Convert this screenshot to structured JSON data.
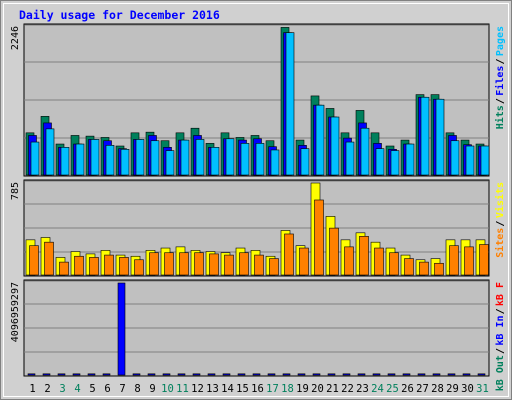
{
  "chart_data": {
    "type": "bar",
    "title": "Daily usage for December 2016",
    "categories": [
      "1",
      "2",
      "3",
      "4",
      "5",
      "6",
      "7",
      "8",
      "9",
      "10",
      "11",
      "12",
      "13",
      "14",
      "15",
      "16",
      "17",
      "18",
      "19",
      "20",
      "21",
      "22",
      "23",
      "24",
      "25",
      "26",
      "27",
      "28",
      "29",
      "30",
      "31"
    ],
    "weekend_days": [
      "3",
      "4",
      "10",
      "11",
      "17",
      "18",
      "24",
      "25",
      "31"
    ],
    "panels": [
      {
        "name": "hits-files-pages",
        "max_label": "2246",
        "ymax": 2246,
        "legend": [
          {
            "label": "Pages",
            "color": "#00c0ff"
          },
          {
            "label": "/",
            "color": "#000000"
          },
          {
            "label": "Files",
            "color": "#0000ff"
          },
          {
            "label": "/",
            "color": "#000000"
          },
          {
            "label": "Hits",
            "color": "#00805c"
          }
        ],
        "series": [
          {
            "name": "Hits",
            "color": "#00805c",
            "values": [
              640,
              890,
              470,
              600,
              590,
              570,
              440,
              640,
              650,
              520,
              640,
              710,
              480,
              640,
              570,
              600,
              520,
              2240,
              530,
              1200,
              1010,
              640,
              980,
              640,
              440,
              530,
              1220,
              1220,
              640,
              530,
              470
            ]
          },
          {
            "name": "Files",
            "color": "#0000ff",
            "values": [
              600,
              790,
              420,
              470,
              540,
              520,
              400,
              540,
              600,
              420,
              530,
              600,
              420,
              550,
              530,
              550,
              430,
              2160,
              450,
              1060,
              880,
              560,
              790,
              480,
              390,
              470,
              1180,
              1150,
              600,
              460,
              440
            ]
          },
          {
            "name": "Pages",
            "color": "#00c0ff",
            "values": [
              500,
              700,
              420,
              470,
              540,
              450,
              390,
              540,
              520,
              370,
              530,
              540,
              420,
              550,
              480,
              480,
              380,
              2160,
              400,
              1060,
              880,
              500,
              710,
              400,
              370,
              470,
              1180,
              1150,
              520,
              440,
              440
            ]
          }
        ]
      },
      {
        "name": "visits-sites",
        "max_label": "785",
        "ymax": 785,
        "legend": [
          {
            "label": "Visits",
            "color": "#ffff00"
          },
          {
            "label": "/",
            "color": "#000000"
          },
          {
            "label": "Sites",
            "color": "#ff8000"
          }
        ],
        "series": [
          {
            "name": "Visits",
            "color": "#ffff00",
            "values": [
              300,
              320,
              150,
              200,
              180,
              210,
              170,
              160,
              210,
              230,
              240,
              210,
              200,
              190,
              230,
              210,
              160,
              380,
              250,
              785,
              500,
              300,
              360,
              280,
              230,
              170,
              130,
              140,
              300,
              300,
              300
            ]
          },
          {
            "name": "Sites",
            "color": "#ff8000",
            "values": [
              250,
              280,
              110,
              160,
              150,
              170,
              150,
              130,
              190,
              190,
              190,
              190,
              180,
              170,
              190,
              170,
              140,
              350,
              230,
              640,
              400,
              240,
              330,
              230,
              190,
              140,
              110,
              100,
              250,
              240,
              260
            ]
          }
        ]
      },
      {
        "name": "kbytes",
        "max_label": "4096959297",
        "ymax": 4096959297,
        "legend": [
          {
            "label": "Visits",
            "color": "#ffff00"
          },
          {
            "label": "kB F",
            "color": "#ff0000"
          },
          {
            "label": "/",
            "color": "#000000"
          },
          {
            "label": "kB In",
            "color": "#0000ff"
          },
          {
            "label": "/",
            "color": "#000000"
          },
          {
            "label": "kB Out",
            "color": "#00805c"
          }
        ],
        "series": [
          {
            "name": "kB In",
            "color": "#0000ff",
            "values": [
              0,
              0,
              0,
              0,
              0,
              0,
              4096959297,
              0,
              0,
              0,
              0,
              0,
              0,
              0,
              0,
              0,
              0,
              0,
              0,
              0,
              0,
              0,
              0,
              0,
              0,
              0,
              0,
              0,
              0,
              0,
              0
            ]
          }
        ]
      }
    ]
  },
  "colors": {
    "plot_background": "#c0c0c0",
    "frame_background": "#d0d0d0",
    "title": "#0000ff",
    "weekday_label": "#000000",
    "weekend_label": "#00805c"
  }
}
